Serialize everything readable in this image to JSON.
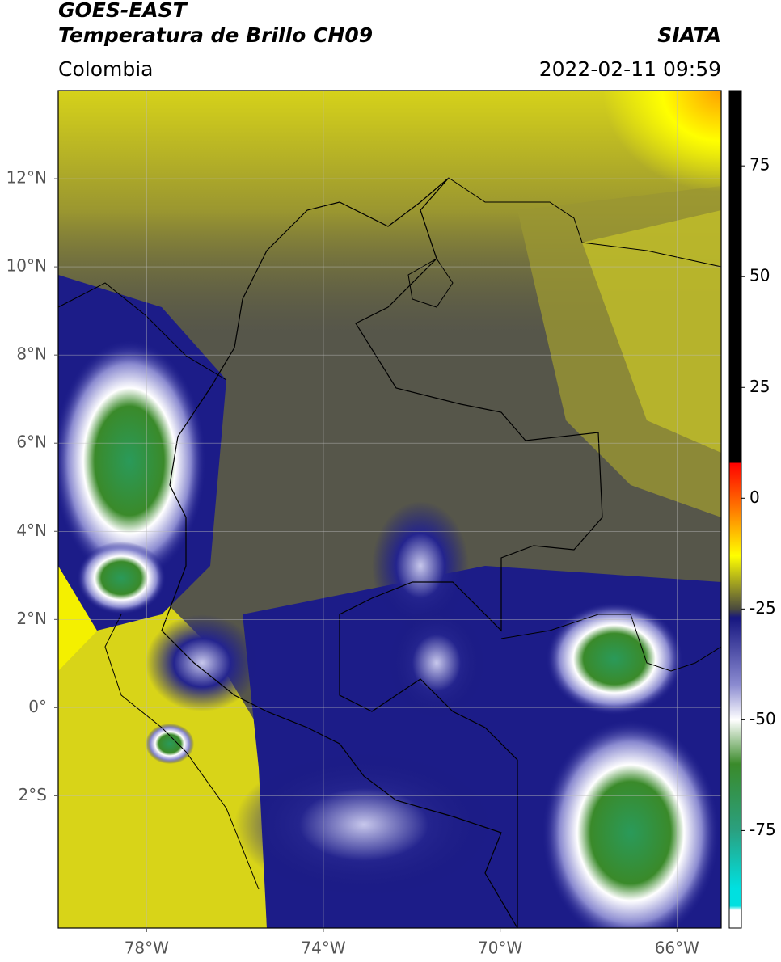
{
  "chart_data": {
    "type": "raster-map",
    "title": "GOES-EAST",
    "subtitle": "Temperatura de Brillo CH09",
    "region": "Colombia",
    "source": "SIATA",
    "timestamp": "2022-02-11 09:59",
    "xlim": [
      -80,
      -65
    ],
    "ylim": [
      -5,
      14
    ],
    "xticks": [
      {
        "value": -78,
        "label": "78°W"
      },
      {
        "value": -74,
        "label": "74°W"
      },
      {
        "value": -70,
        "label": "70°W"
      },
      {
        "value": -66,
        "label": "66°W"
      }
    ],
    "yticks": [
      {
        "value": 12,
        "label": "12°N"
      },
      {
        "value": 10,
        "label": "10°N"
      },
      {
        "value": 8,
        "label": "8°N"
      },
      {
        "value": 6,
        "label": "6°N"
      },
      {
        "value": 4,
        "label": "4°N"
      },
      {
        "value": 2,
        "label": "2°N"
      },
      {
        "value": 0,
        "label": "0°"
      },
      {
        "value": -2,
        "label": "2°S"
      }
    ],
    "grid": true,
    "colorbar": {
      "clim": [
        -97,
        92
      ],
      "ticks": [
        75,
        50,
        25,
        0,
        -25,
        -50,
        -75
      ],
      "stops": [
        [
          92,
          "#000000"
        ],
        [
          8,
          "#000000"
        ],
        [
          8,
          "#ff0000"
        ],
        [
          -3,
          "#ff8000"
        ],
        [
          -13,
          "#ffff00"
        ],
        [
          -25,
          "#4a4a3e"
        ],
        [
          -27,
          "#161680"
        ],
        [
          -42,
          "#8a8ad0"
        ],
        [
          -50,
          "#ffffff"
        ],
        [
          -60,
          "#3a8a2a"
        ],
        [
          -75,
          "#2aa080"
        ],
        [
          -88,
          "#00e0e0"
        ],
        [
          -92,
          "#00e0e0"
        ],
        [
          -93,
          "#ffffff"
        ],
        [
          -97,
          "#ffffff"
        ]
      ]
    }
  }
}
